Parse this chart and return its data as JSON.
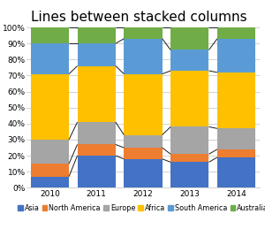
{
  "title": "Lines between stacked columns",
  "years": [
    2010,
    2011,
    2012,
    2013,
    2014
  ],
  "categories": [
    "Asia",
    "North America",
    "Europe",
    "Africa",
    "South America",
    "Australia"
  ],
  "colors": [
    "#4472C4",
    "#ED7D31",
    "#A5A5A5",
    "#FFC000",
    "#5B9BD5",
    "#70AD47"
  ],
  "values": {
    "Asia": [
      7,
      20,
      18,
      16,
      19
    ],
    "North America": [
      8,
      7,
      7,
      5,
      5
    ],
    "Europe": [
      15,
      14,
      8,
      17,
      13
    ],
    "Africa": [
      41,
      35,
      38,
      35,
      35
    ],
    "South America": [
      19,
      14,
      22,
      13,
      21
    ],
    "Australia": [
      10,
      10,
      7,
      14,
      7
    ]
  },
  "ylim": [
    0,
    100
  ],
  "yticks": [
    0,
    10,
    20,
    30,
    40,
    50,
    60,
    70,
    80,
    90,
    100
  ],
  "background_color": "#FFFFFF",
  "grid_color": "#BFBFBF",
  "line_color": "#1A1A1A",
  "title_fontsize": 11,
  "tick_fontsize": 6.5,
  "legend_fontsize": 5.8,
  "bar_width": 0.82
}
